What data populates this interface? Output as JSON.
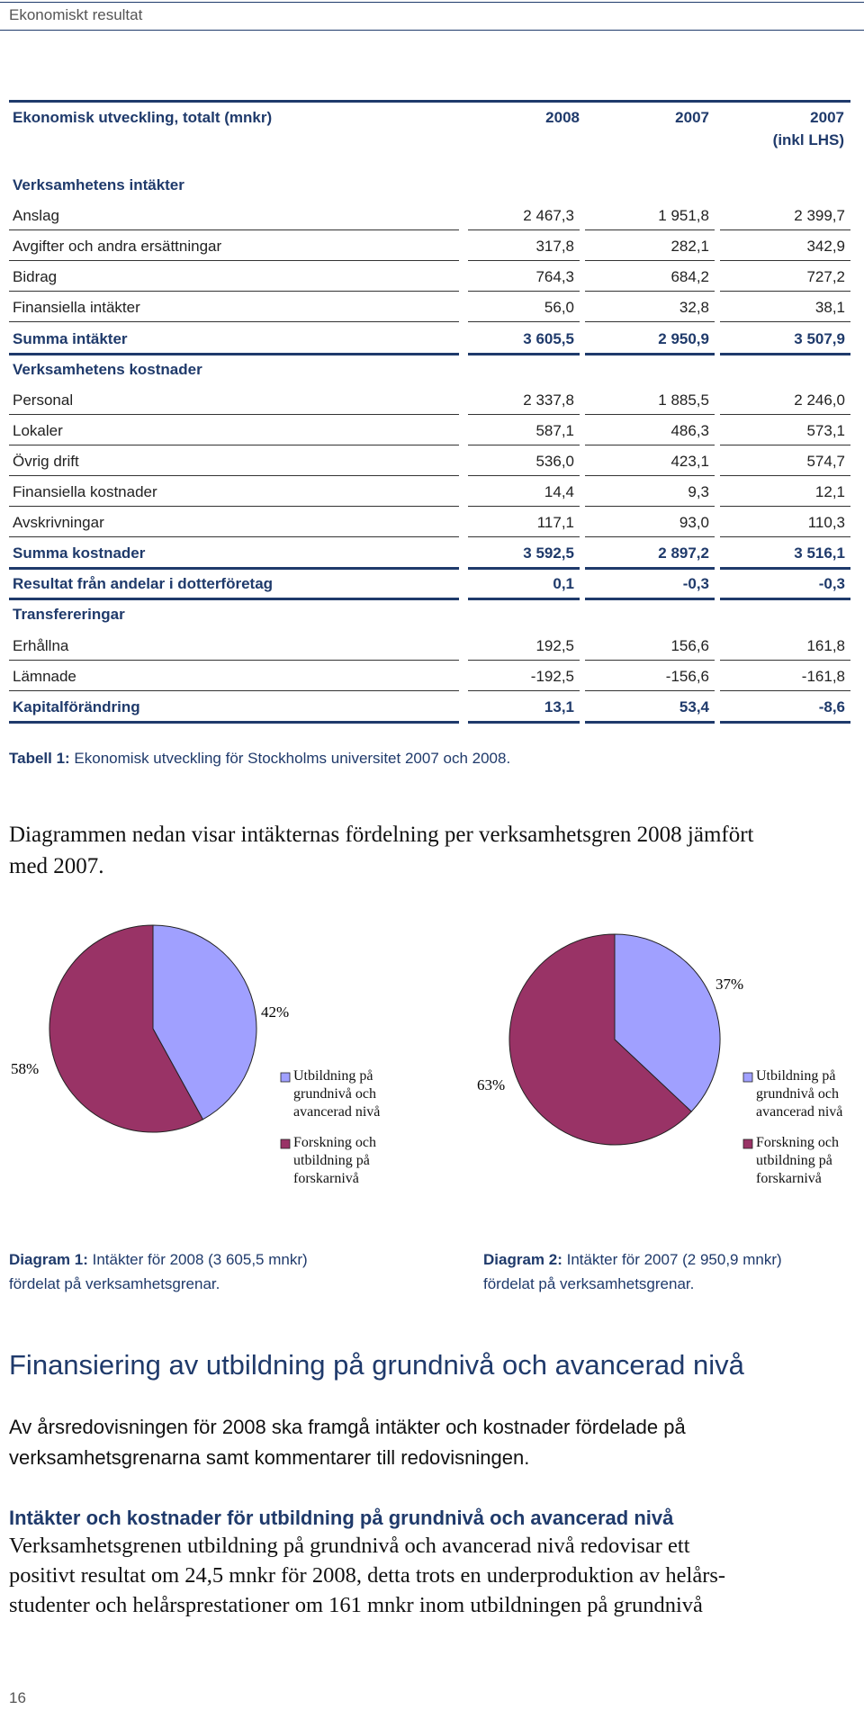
{
  "header": {
    "title": "Ekonomiskt resultat"
  },
  "table": {
    "columns": [
      "Ekonomisk utveckling, totalt (mnkr)",
      "2008",
      "2007",
      [
        "2007",
        "(inkl LHS)"
      ]
    ],
    "rows": [
      {
        "label": "Verksamhetens intäkter",
        "bold": true
      },
      {
        "label": "Anslag",
        "values": [
          "2 467,3",
          "1 951,8",
          "2 399,7"
        ]
      },
      {
        "label": "Avgifter och andra ersättningar",
        "values": [
          "317,8",
          "282,1",
          "342,9"
        ]
      },
      {
        "label": "Bidrag",
        "values": [
          "764,3",
          "684,2",
          "727,2"
        ]
      },
      {
        "label": "Finansiella intäkter",
        "values": [
          "56,0",
          "32,8",
          "38,1"
        ]
      },
      {
        "label": "Summa intäkter",
        "values": [
          "3 605,5",
          "2 950,9",
          "3 507,9"
        ],
        "bold": true
      },
      {
        "label": "Verksamhetens kostnader",
        "bold": true
      },
      {
        "label": "Personal",
        "values": [
          "2 337,8",
          "1 885,5",
          "2 246,0"
        ]
      },
      {
        "label": "Lokaler",
        "values": [
          "587,1",
          "486,3",
          "573,1"
        ]
      },
      {
        "label": "Övrig drift",
        "values": [
          "536,0",
          "423,1",
          "574,7"
        ]
      },
      {
        "label": "Finansiella kostnader",
        "values": [
          "14,4",
          "9,3",
          "12,1"
        ]
      },
      {
        "label": "Avskrivningar",
        "values": [
          "117,1",
          "93,0",
          "110,3"
        ]
      },
      {
        "label": "Summa kostnader",
        "values": [
          "3 592,5",
          "2 897,2",
          "3 516,1"
        ],
        "bold": true
      },
      {
        "label": "Resultat från andelar i dotterföretag",
        "values": [
          "0,1",
          "-0,3",
          "-0,3"
        ],
        "bold": true
      },
      {
        "label": "Transfereringar",
        "bold": true
      },
      {
        "label": "Erhållna",
        "values": [
          "192,5",
          "156,6",
          "161,8"
        ]
      },
      {
        "label": "Lämnade",
        "values": [
          "-192,5",
          "-156,6",
          "-161,8"
        ]
      },
      {
        "label": "Kapitalförändring",
        "values": [
          "13,1",
          "53,4",
          "-8,6"
        ],
        "bold": true
      }
    ],
    "caption": {
      "label": "Tabell 1:",
      "text": "Ekonomisk utveckling för Stockholms universitet 2007 och 2008."
    }
  },
  "intro": {
    "lines": [
      "Diagrammen nedan visar intäkternas fördelning per verksamhetsgren 2008 jämfört",
      "med 2007."
    ]
  },
  "chart_data": [
    {
      "type": "pie",
      "categories": [
        "Utbildning på grundnivå och avancerad nivå",
        "Forskning och utbildning på forskarnivå"
      ],
      "values": [
        42,
        58
      ],
      "value_labels": [
        "42%",
        "58%"
      ],
      "colors": [
        "#a0a0ff",
        "#993366"
      ],
      "legend": "right"
    },
    {
      "type": "pie",
      "categories": [
        "Utbildning på grundnivå och avancerad nivå",
        "Forskning och utbildning på forskarnivå"
      ],
      "values": [
        37,
        63
      ],
      "value_labels": [
        "37%",
        "63%"
      ],
      "colors": [
        "#a0a0ff",
        "#993366"
      ],
      "legend": "right"
    }
  ],
  "diagram_captions": [
    {
      "label": "Diagram 1:",
      "lines": [
        "Intäkter för 2008 (3 605,5 mnkr)",
        "fördelat på verksamhetsgrenar."
      ]
    },
    {
      "label": "Diagram 2:",
      "lines": [
        "Intäkter för 2007 (2 950,9 mnkr)",
        "fördelat på verksamhetsgrenar."
      ]
    }
  ],
  "section": {
    "heading": "Finansiering av utbildning på grundnivå och avancerad nivå",
    "lead": [
      "Av årsredovisningen för 2008 ska framgå intäkter och kostnader fördelade på",
      "verksamhetsgrenarna samt kommentarer till redovisningen."
    ],
    "subheading": "Intäkter och kostnader för utbildning på grundnivå och avancerad nivå",
    "body": [
      "Verksamhetsgrenen utbildning på grundnivå och avancerad nivå redovisar ett",
      "positivt resultat om 24,5 mnkr för 2008, detta trots en underproduktion av helårs-",
      "studenter och helårsprestationer om 161 mnkr inom utbildningen på grundnivå"
    ]
  },
  "footer": {
    "page": "16"
  }
}
